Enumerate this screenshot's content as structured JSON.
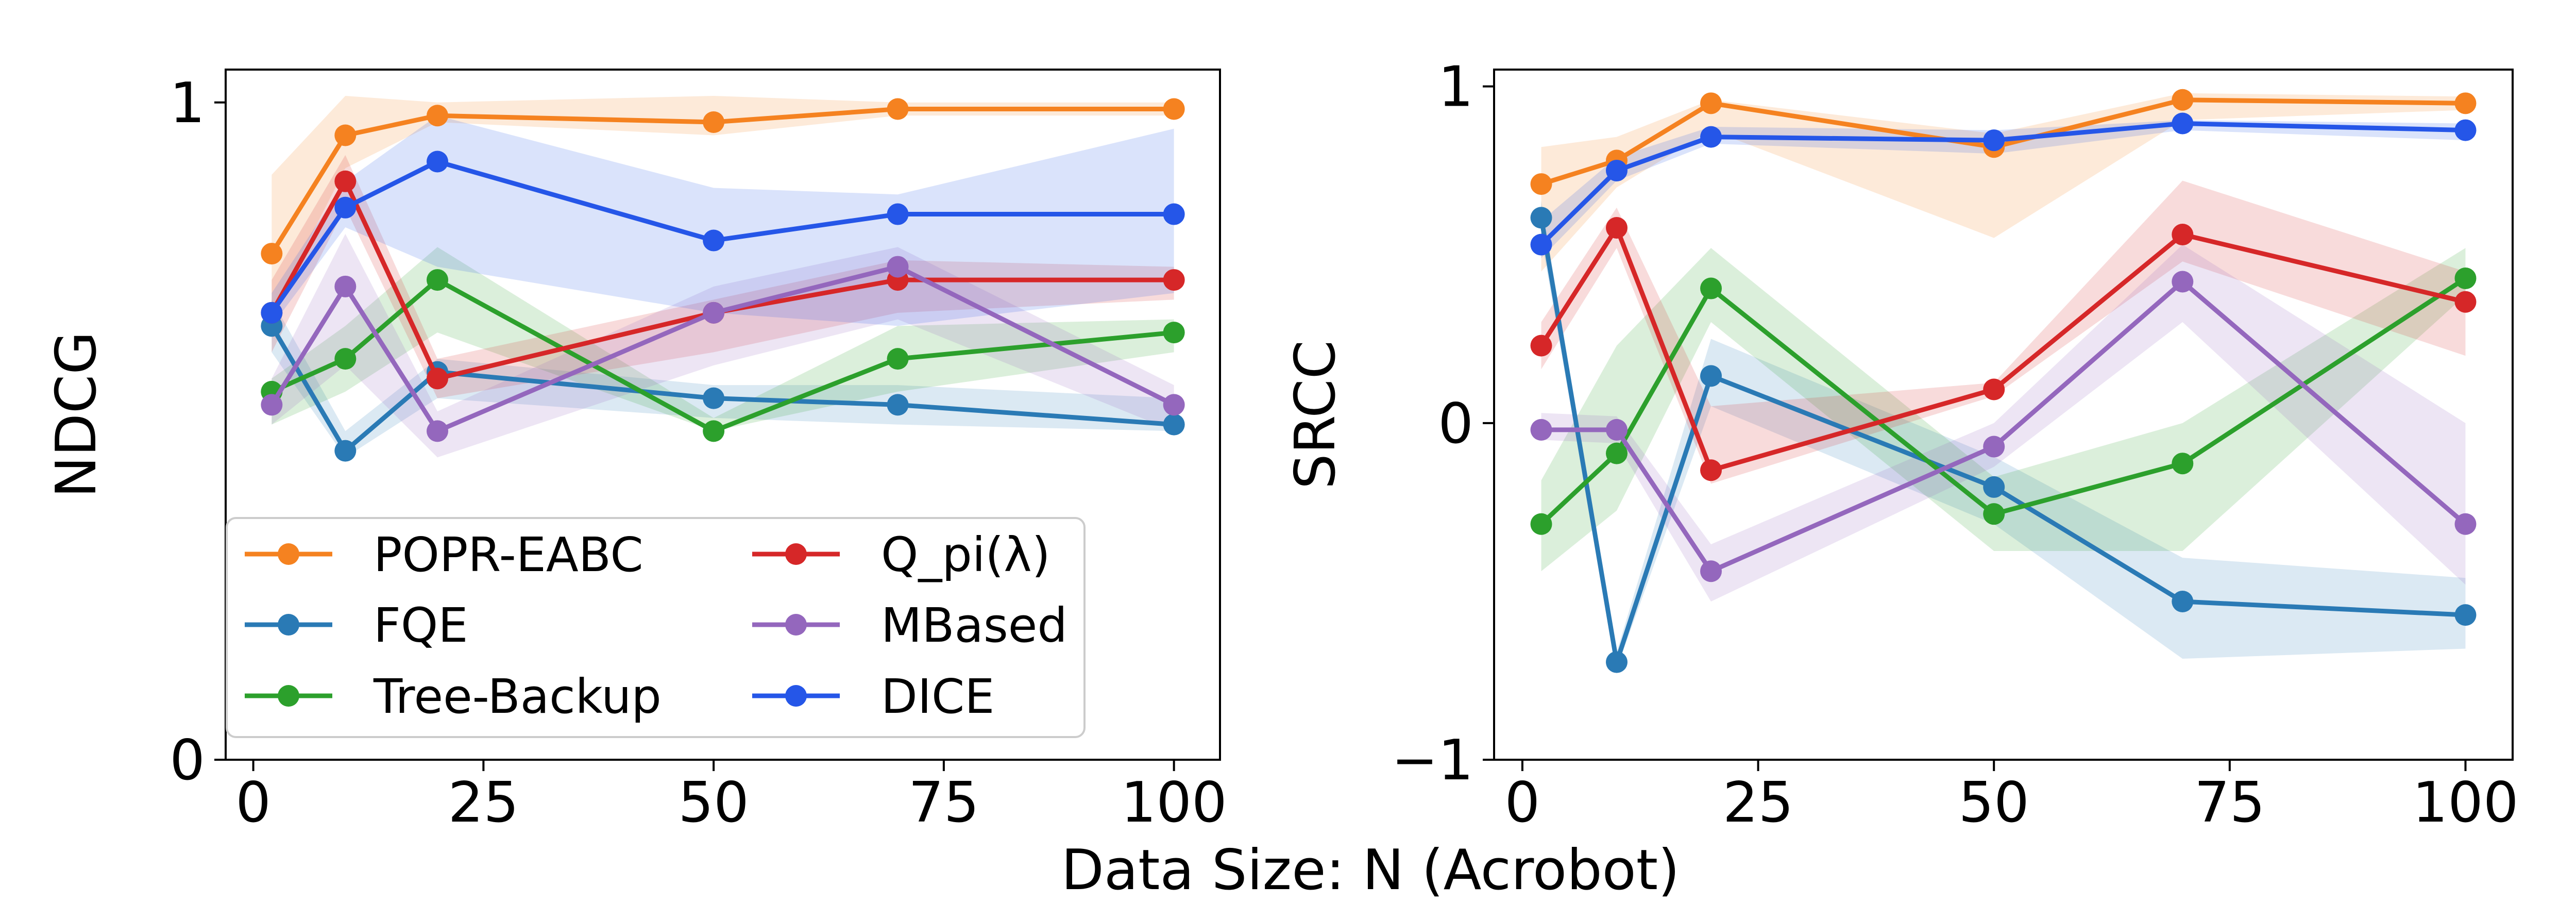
{
  "figure": {
    "xlabel": "Data Size: N (Acrobot)"
  },
  "legend": {
    "entries": [
      {
        "name": "POPR-EABC",
        "color": "#f58220"
      },
      {
        "name": "FQE",
        "color": "#2a7ab5"
      },
      {
        "name": "Tree-Backup",
        "color": "#2ca02c"
      },
      {
        "name": "Q_pi(λ)",
        "color": "#d62728"
      },
      {
        "name": "MBased",
        "color": "#9467bd"
      },
      {
        "name": "DICE",
        "color": "#2556e8"
      }
    ]
  },
  "chart_data": [
    {
      "type": "line",
      "title": "",
      "xlabel": "",
      "ylabel": "NDCG",
      "xlim": [
        -3,
        105
      ],
      "ylim": [
        0,
        1.05
      ],
      "xticks": [
        "0",
        "25",
        "50",
        "75",
        "100"
      ],
      "yticks": [
        "0",
        "1"
      ],
      "x": [
        2,
        10,
        20,
        50,
        70,
        100
      ],
      "series": [
        {
          "name": "POPR-EABC",
          "color": "#f58220",
          "values": [
            0.77,
            0.95,
            0.98,
            0.97,
            0.99,
            0.99
          ],
          "lower": [
            0.68,
            0.9,
            0.97,
            0.95,
            0.98,
            0.98
          ],
          "upper": [
            0.89,
            1.01,
            1.0,
            1.01,
            1.0,
            1.0
          ]
        },
        {
          "name": "FQE",
          "color": "#2a7ab5",
          "values": [
            0.66,
            0.47,
            0.59,
            0.55,
            0.54,
            0.51
          ],
          "lower": [
            0.62,
            0.46,
            0.55,
            0.52,
            0.51,
            0.5
          ],
          "upper": [
            0.7,
            0.5,
            0.61,
            0.57,
            0.57,
            0.55
          ]
        },
        {
          "name": "Tree-Backup",
          "color": "#2ca02c",
          "values": [
            0.56,
            0.61,
            0.73,
            0.5,
            0.61,
            0.65
          ],
          "lower": [
            0.51,
            0.56,
            0.65,
            0.5,
            0.56,
            0.62
          ],
          "upper": [
            0.58,
            0.66,
            0.78,
            0.52,
            0.66,
            0.67
          ]
        },
        {
          "name": "Q_pi(λ)",
          "color": "#d62728",
          "values": [
            0.68,
            0.88,
            0.58,
            0.68,
            0.73,
            0.73
          ],
          "lower": [
            0.62,
            0.84,
            0.55,
            0.62,
            0.68,
            0.7
          ],
          "upper": [
            0.73,
            0.92,
            0.61,
            0.7,
            0.76,
            0.75
          ]
        },
        {
          "name": "MBased",
          "color": "#9467bd",
          "values": [
            0.54,
            0.72,
            0.5,
            0.68,
            0.75,
            0.54
          ],
          "lower": [
            0.51,
            0.6,
            0.46,
            0.6,
            0.67,
            0.5
          ],
          "upper": [
            0.58,
            0.8,
            0.53,
            0.72,
            0.78,
            0.57
          ]
        },
        {
          "name": "DICE",
          "color": "#2556e8",
          "values": [
            0.68,
            0.84,
            0.91,
            0.79,
            0.83,
            0.83
          ],
          "lower": [
            0.66,
            0.81,
            0.75,
            0.68,
            0.66,
            0.71
          ],
          "upper": [
            0.71,
            0.88,
            0.98,
            0.87,
            0.86,
            0.96
          ]
        }
      ]
    },
    {
      "type": "line",
      "title": "",
      "xlabel": "",
      "ylabel": "SRCC",
      "xlim": [
        -3,
        105
      ],
      "ylim": [
        -1,
        1.05
      ],
      "xticks": [
        "0",
        "25",
        "50",
        "75",
        "100"
      ],
      "yticks": [
        "−1",
        "0",
        "1"
      ],
      "yticks_values": [
        -1,
        0,
        1
      ],
      "x": [
        2,
        10,
        20,
        50,
        70,
        100
      ],
      "series": [
        {
          "name": "POPR-EABC",
          "color": "#f58220",
          "values": [
            0.71,
            0.78,
            0.95,
            0.82,
            0.96,
            0.95
          ],
          "lower": [
            0.45,
            0.7,
            0.87,
            0.55,
            0.9,
            0.93
          ],
          "upper": [
            0.82,
            0.85,
            0.96,
            0.86,
            0.98,
            0.97
          ]
        },
        {
          "name": "FQE",
          "color": "#2a7ab5",
          "values": [
            0.61,
            -0.71,
            0.14,
            -0.19,
            -0.53,
            -0.57
          ],
          "lower": [
            0.55,
            -0.73,
            0.05,
            -0.3,
            -0.7,
            -0.67
          ],
          "upper": [
            0.66,
            -0.68,
            0.25,
            -0.1,
            -0.4,
            -0.46
          ]
        },
        {
          "name": "Tree-Backup",
          "color": "#2ca02c",
          "values": [
            -0.3,
            -0.09,
            0.4,
            -0.27,
            -0.12,
            0.43
          ],
          "lower": [
            -0.44,
            -0.26,
            0.3,
            -0.38,
            -0.38,
            0.38
          ],
          "upper": [
            -0.17,
            0.23,
            0.52,
            -0.16,
            0.0,
            0.52
          ]
        },
        {
          "name": "Q_pi(λ)",
          "color": "#d62728",
          "values": [
            0.23,
            0.58,
            -0.14,
            0.1,
            0.56,
            0.36
          ],
          "lower": [
            0.16,
            0.52,
            -0.18,
            0.08,
            0.48,
            0.2
          ],
          "upper": [
            0.3,
            0.64,
            0.05,
            0.12,
            0.72,
            0.45
          ]
        },
        {
          "name": "MBased",
          "color": "#9467bd",
          "values": [
            -0.02,
            -0.02,
            -0.44,
            -0.07,
            0.42,
            -0.3
          ],
          "lower": [
            -0.05,
            -0.06,
            -0.53,
            -0.13,
            0.3,
            -0.48
          ],
          "upper": [
            0.03,
            0.02,
            -0.36,
            0.0,
            0.53,
            0.0
          ]
        },
        {
          "name": "DICE",
          "color": "#2556e8",
          "values": [
            0.53,
            0.75,
            0.85,
            0.84,
            0.89,
            0.87
          ],
          "lower": [
            0.49,
            0.72,
            0.83,
            0.8,
            0.87,
            0.84
          ],
          "upper": [
            0.6,
            0.79,
            0.88,
            0.87,
            0.9,
            0.89
          ]
        }
      ]
    }
  ]
}
